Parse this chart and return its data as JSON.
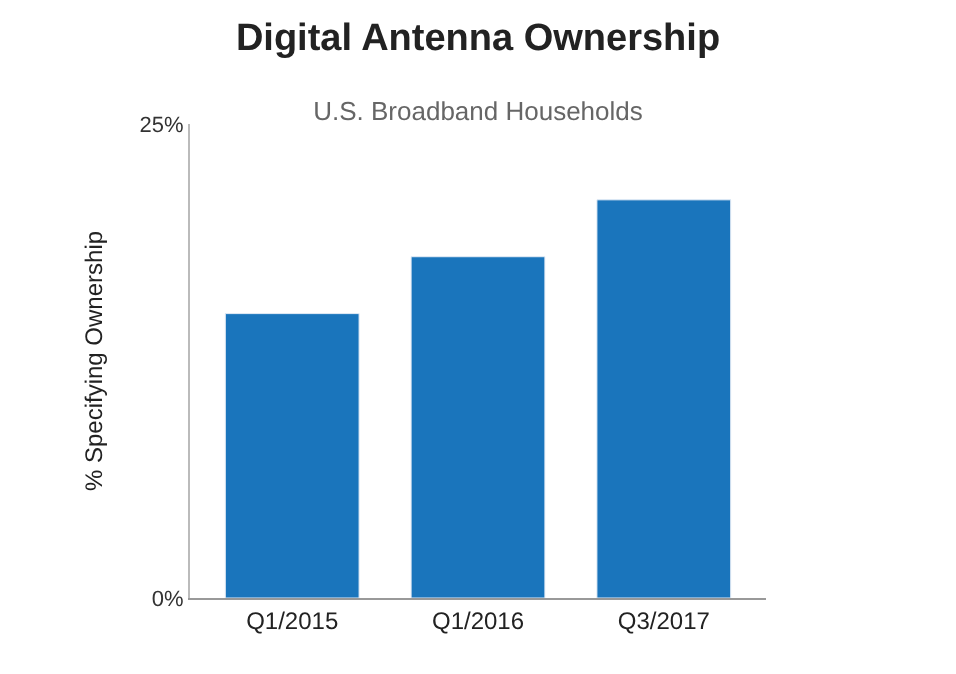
{
  "chart_data": {
    "type": "bar",
    "title": "Digital Antenna Ownership",
    "subtitle": "U.S. Broadband Households",
    "ylabel": "% Specifying Ownership",
    "categories": [
      "Q1/2015",
      "Q1/2016",
      "Q3/2017"
    ],
    "values": [
      15,
      18,
      21
    ],
    "color": "#1a75bc",
    "ylim": [
      0,
      25
    ],
    "yticks": [
      {
        "value": 0,
        "label": "0%"
      },
      {
        "value": 25,
        "label": "25%"
      }
    ]
  }
}
